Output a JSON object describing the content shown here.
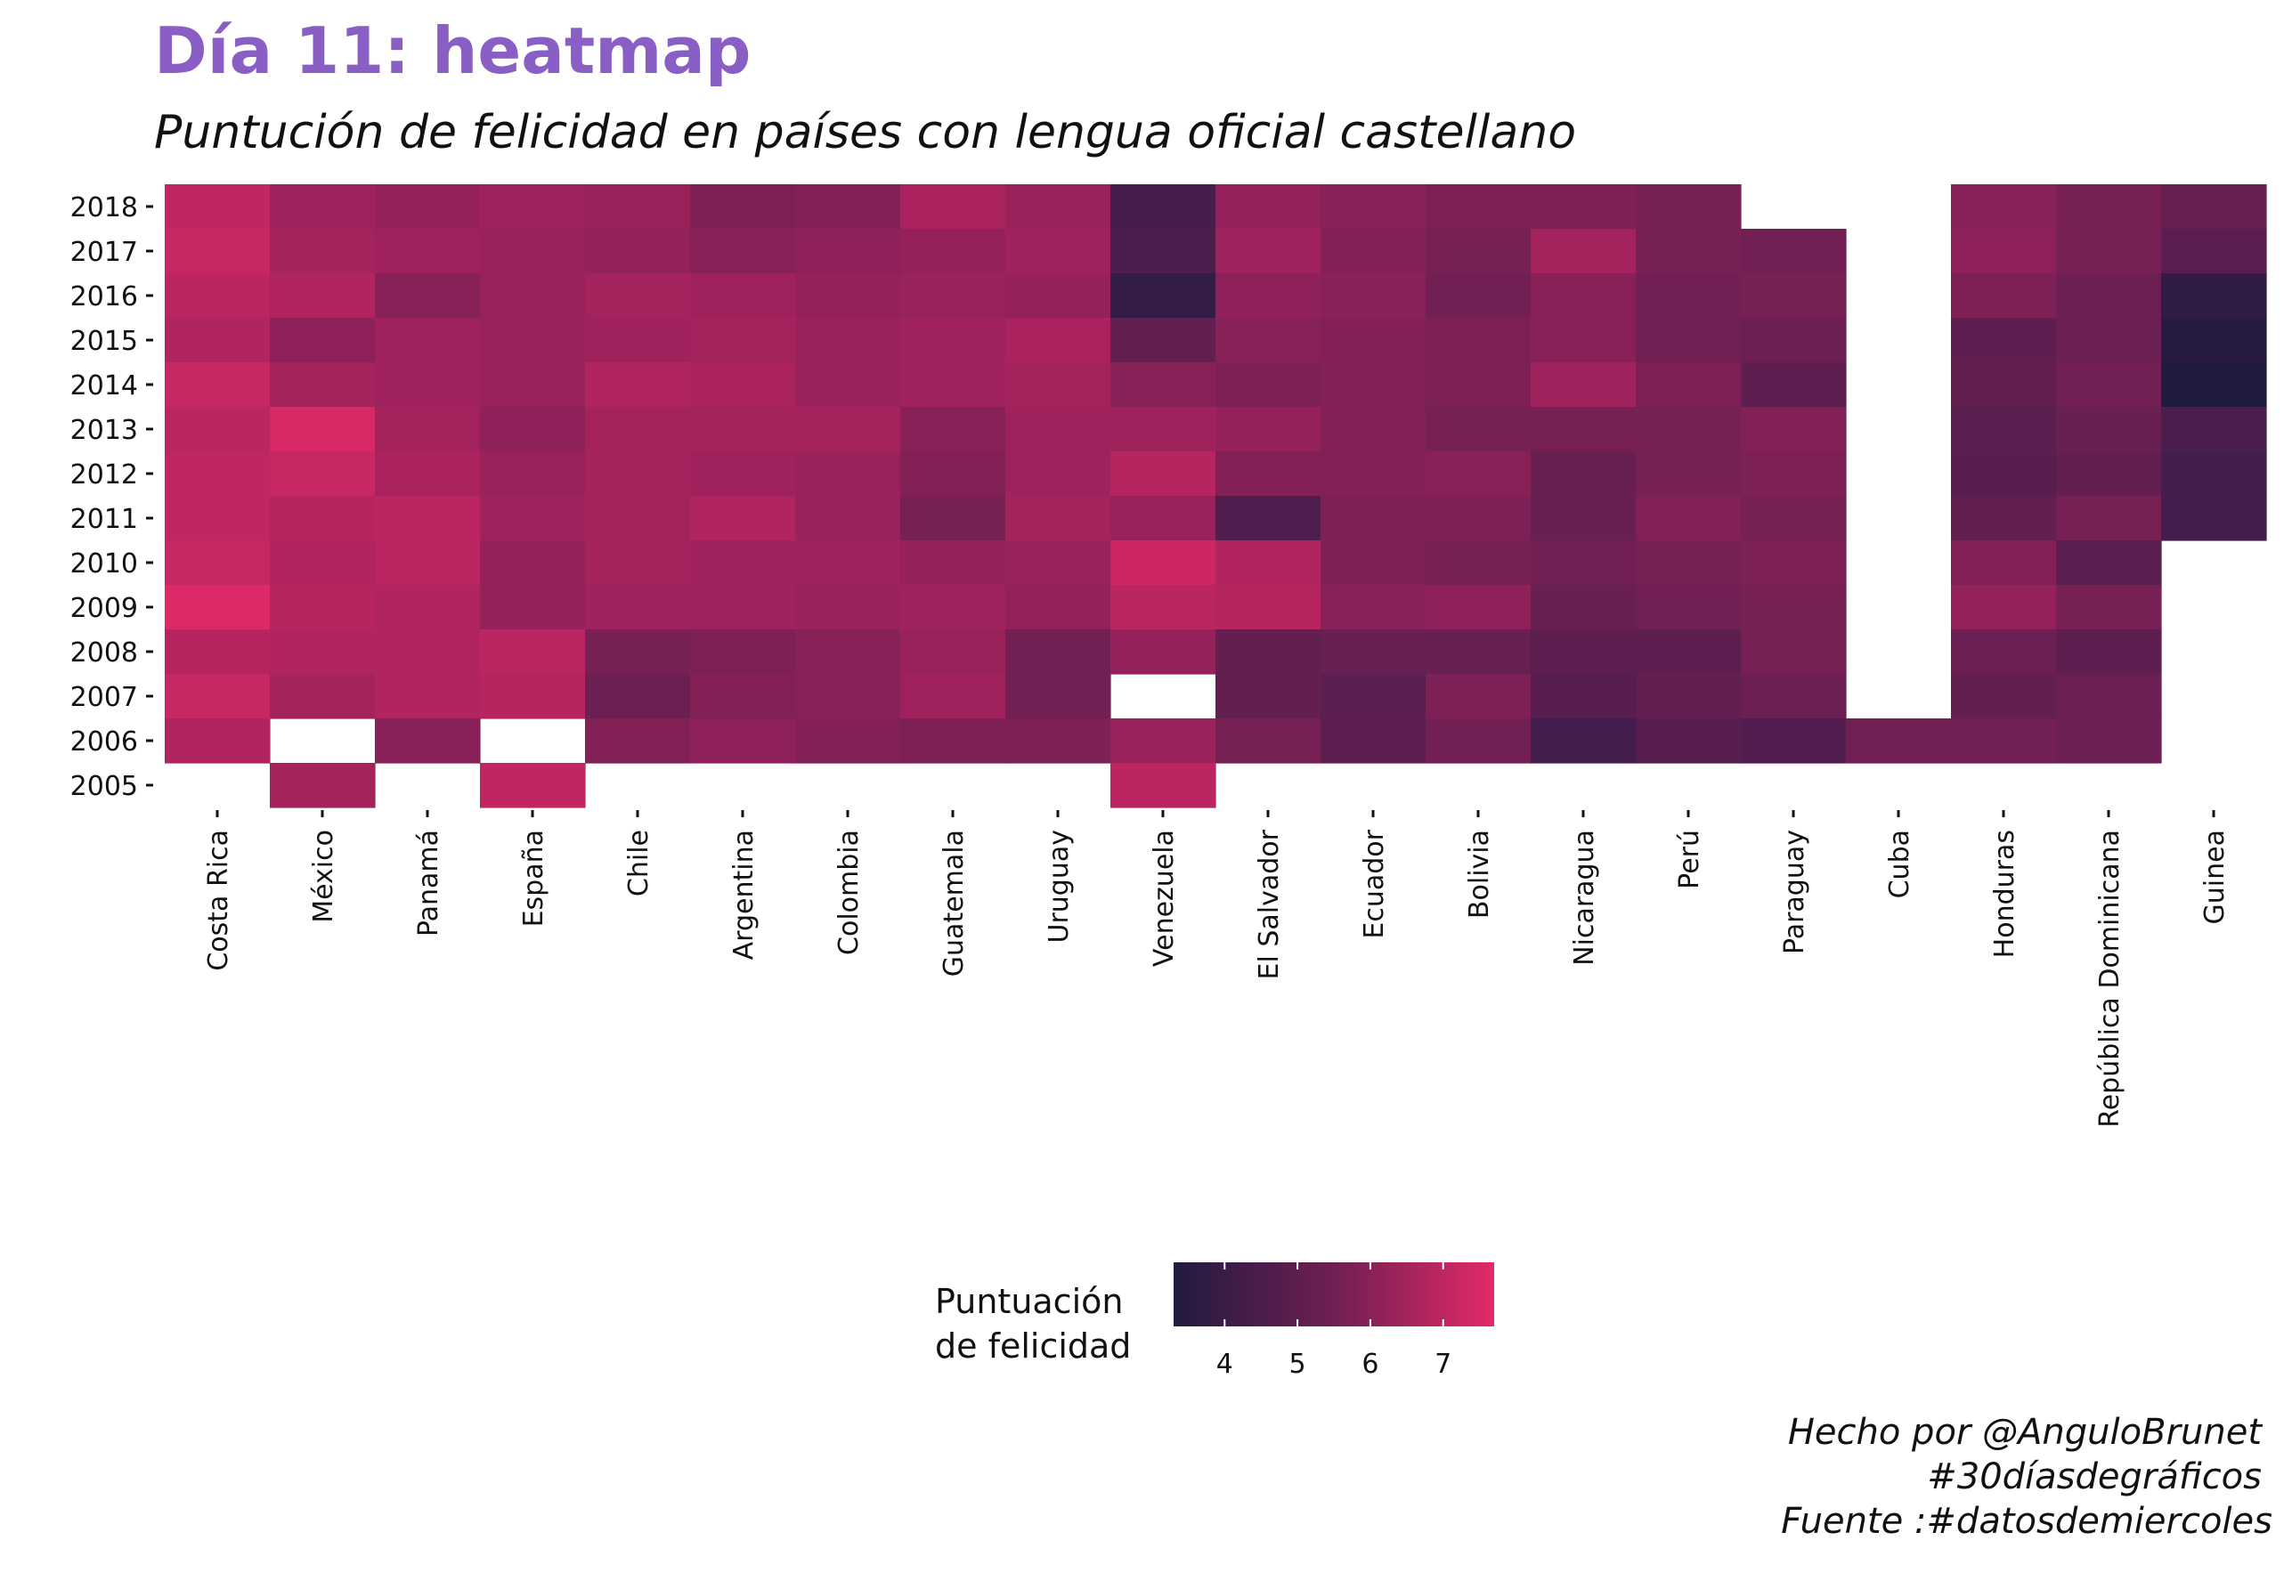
{
  "chart_data": {
    "type": "heatmap",
    "title": "Día 11: heatmap",
    "subtitle": "Puntución de felicidad en países con lengua oficial castellano",
    "countries": [
      "Costa Rica",
      "México",
      "Panamá",
      "España",
      "Chile",
      "Argentina",
      "Colombia",
      "Guatemala",
      "Uruguay",
      "Venezuela",
      "El Salvador",
      "Ecuador",
      "Bolivia",
      "Nicaragua",
      "Perú",
      "Paraguay",
      "Cuba",
      "Honduras",
      "República Dominicana",
      "Guinea"
    ],
    "years": [
      "2018",
      "2017",
      "2016",
      "2015",
      "2014",
      "2013",
      "2012",
      "2011",
      "2010",
      "2009",
      "2008",
      "2007",
      "2006",
      "2005"
    ],
    "values": [
      [
        7.1,
        6.5,
        6.3,
        6.5,
        6.4,
        5.9,
        6.0,
        6.7,
        6.4,
        4.7,
        6.3,
        6.1,
        5.9,
        5.9,
        5.8,
        null,
        null,
        6.1,
        5.8,
        5.5
      ],
      [
        7.2,
        6.6,
        6.5,
        6.4,
        6.3,
        6.1,
        6.2,
        6.3,
        6.5,
        4.8,
        6.5,
        6.0,
        5.8,
        6.6,
        5.8,
        5.7,
        null,
        6.2,
        5.8,
        5.2
      ],
      [
        7.0,
        6.8,
        6.1,
        6.4,
        6.6,
        6.5,
        6.3,
        6.4,
        6.3,
        4.1,
        6.2,
        6.1,
        5.7,
        6.1,
        5.7,
        5.8,
        null,
        5.9,
        5.6,
        3.9
      ],
      [
        6.8,
        6.2,
        6.5,
        6.4,
        6.5,
        6.6,
        6.4,
        6.5,
        6.7,
        5.4,
        6.1,
        6.0,
        5.9,
        6.1,
        5.7,
        5.6,
        null,
        5.3,
        5.6,
        3.6
      ],
      [
        7.2,
        6.6,
        6.5,
        6.4,
        6.8,
        6.7,
        6.4,
        6.5,
        6.6,
        6.1,
        5.9,
        6.0,
        5.9,
        6.5,
        5.9,
        5.3,
        null,
        5.4,
        5.7,
        3.3
      ],
      [
        7.0,
        7.5,
        6.6,
        6.2,
        6.6,
        6.6,
        6.6,
        6.1,
        6.5,
        6.5,
        6.3,
        6.0,
        5.8,
        5.8,
        5.8,
        6.0,
        null,
        5.2,
        5.5,
        4.8
      ],
      [
        7.1,
        7.2,
        6.7,
        6.4,
        6.6,
        6.5,
        6.4,
        6.0,
        6.5,
        6.9,
        6.0,
        6.0,
        6.1,
        5.5,
        5.8,
        5.9,
        null,
        5.1,
        5.4,
        4.6
      ],
      [
        7.1,
        6.9,
        7.0,
        6.5,
        6.6,
        6.8,
        6.4,
        5.8,
        6.6,
        6.4,
        4.9,
        5.9,
        5.9,
        5.5,
        6.0,
        5.8,
        null,
        5.4,
        5.8,
        4.6
      ],
      [
        7.2,
        6.8,
        7.0,
        6.3,
        6.6,
        6.5,
        6.5,
        6.3,
        6.4,
        7.3,
        6.8,
        5.9,
        5.8,
        5.7,
        5.8,
        5.9,
        null,
        6.0,
        5.2,
        null
      ],
      [
        7.6,
        6.9,
        6.8,
        6.3,
        6.5,
        6.5,
        6.4,
        6.5,
        6.3,
        7.0,
        6.9,
        6.1,
        6.2,
        5.5,
        5.7,
        5.8,
        null,
        6.3,
        5.8,
        null
      ],
      [
        6.9,
        6.8,
        6.8,
        7.0,
        5.8,
        5.9,
        6.1,
        6.4,
        5.7,
        6.3,
        5.4,
        5.5,
        5.5,
        5.3,
        5.3,
        5.8,
        null,
        5.6,
        5.3,
        null
      ],
      [
        7.2,
        6.6,
        6.8,
        6.9,
        5.6,
        6.0,
        6.1,
        6.5,
        5.7,
        null,
        5.4,
        5.2,
        5.9,
        5.1,
        5.4,
        5.6,
        null,
        5.4,
        5.6,
        null
      ],
      [
        6.8,
        null,
        6.1,
        null,
        6.0,
        6.2,
        6.0,
        5.9,
        5.9,
        6.4,
        5.8,
        5.3,
        5.7,
        4.6,
        5.1,
        5.0,
        5.7,
        5.7,
        5.6,
        null
      ],
      [
        null,
        6.6,
        null,
        7.1,
        null,
        null,
        null,
        null,
        null,
        7.0,
        null,
        null,
        null,
        null,
        null,
        null,
        null,
        null,
        null,
        null
      ]
    ],
    "color_scale": {
      "low": "#211a3f",
      "high": "#e32a68",
      "domain": [
        3.3,
        7.7
      ]
    },
    "legend": {
      "title_line1": "Puntuación",
      "title_line2": "de felicidad",
      "ticks": [
        4,
        5,
        6,
        7
      ]
    },
    "xlabel": "",
    "ylabel": ""
  },
  "caption": {
    "line1": "Hecho por @AnguloBrunet",
    "line2": "#30díasdegráficos",
    "line3": "Fuente :#datosdemiercoles"
  }
}
